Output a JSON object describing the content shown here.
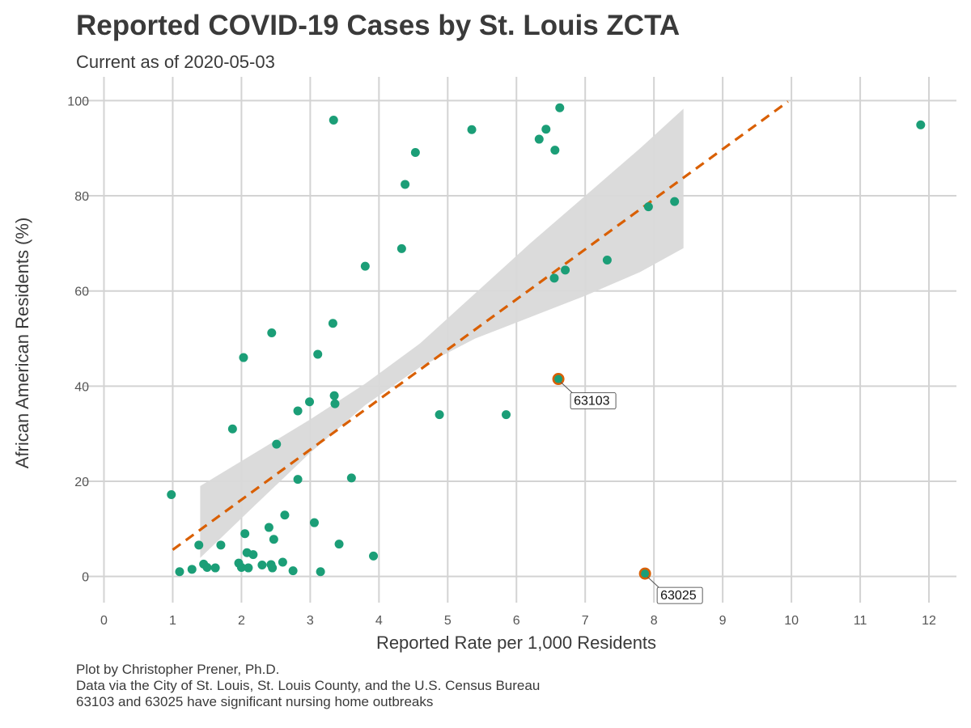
{
  "title": "Reported COVID-19 Cases by St. Louis ZCTA",
  "subtitle": "Current as of 2020-05-03",
  "caption": [
    "Plot by Christopher Prener, Ph.D.",
    "Data via the City of St. Louis, St. Louis County, and the U.S. Census Bureau",
    "63103 and 63025 have significant nursing home outbreaks"
  ],
  "colors": {
    "point": "#1b9e77",
    "trend": "#d95f02",
    "ribbon": "#d9d9d9",
    "grid": "#d3d3d3",
    "highlight": "#d95f02"
  },
  "chart_data": {
    "type": "scatter",
    "title": "Reported COVID-19 Cases by St. Louis ZCTA",
    "xlabel": "Reported Rate per 1,000 Residents",
    "ylabel": "African American Residents (%)",
    "xlim": [
      -0.3,
      12.4
    ],
    "ylim": [
      -5.5,
      105
    ],
    "xticks": [
      0,
      1,
      2,
      3,
      4,
      5,
      6,
      7,
      8,
      9,
      10,
      11,
      12
    ],
    "yticks": [
      0,
      20,
      40,
      60,
      80,
      100
    ],
    "grid": true,
    "legend": "none",
    "points": [
      {
        "x": 0.98,
        "y": 17.2
      },
      {
        "x": 1.1,
        "y": 1.0
      },
      {
        "x": 1.28,
        "y": 1.5
      },
      {
        "x": 1.38,
        "y": 6.6
      },
      {
        "x": 1.45,
        "y": 2.6
      },
      {
        "x": 1.5,
        "y": 1.9
      },
      {
        "x": 1.62,
        "y": 1.8
      },
      {
        "x": 1.7,
        "y": 6.6
      },
      {
        "x": 1.87,
        "y": 31.0
      },
      {
        "x": 1.96,
        "y": 2.8
      },
      {
        "x": 2.0,
        "y": 1.9
      },
      {
        "x": 2.03,
        "y": 46.0
      },
      {
        "x": 2.05,
        "y": 9.0
      },
      {
        "x": 2.08,
        "y": 5.0
      },
      {
        "x": 2.1,
        "y": 1.8
      },
      {
        "x": 2.17,
        "y": 4.6
      },
      {
        "x": 2.3,
        "y": 2.4
      },
      {
        "x": 2.4,
        "y": 10.3
      },
      {
        "x": 2.43,
        "y": 2.5
      },
      {
        "x": 2.44,
        "y": 51.2
      },
      {
        "x": 2.45,
        "y": 1.8
      },
      {
        "x": 2.47,
        "y": 7.8
      },
      {
        "x": 2.51,
        "y": 27.8
      },
      {
        "x": 2.6,
        "y": 3.0
      },
      {
        "x": 2.63,
        "y": 12.9
      },
      {
        "x": 2.75,
        "y": 1.2
      },
      {
        "x": 2.82,
        "y": 34.8
      },
      {
        "x": 2.82,
        "y": 20.4
      },
      {
        "x": 2.99,
        "y": 36.7
      },
      {
        "x": 3.06,
        "y": 11.3
      },
      {
        "x": 3.11,
        "y": 46.7
      },
      {
        "x": 3.15,
        "y": 1.0
      },
      {
        "x": 3.33,
        "y": 53.2
      },
      {
        "x": 3.34,
        "y": 95.9
      },
      {
        "x": 3.35,
        "y": 38.0
      },
      {
        "x": 3.36,
        "y": 36.3
      },
      {
        "x": 3.42,
        "y": 6.8
      },
      {
        "x": 3.6,
        "y": 20.7
      },
      {
        "x": 3.8,
        "y": 65.2
      },
      {
        "x": 3.92,
        "y": 4.3
      },
      {
        "x": 4.33,
        "y": 68.9
      },
      {
        "x": 4.38,
        "y": 82.4
      },
      {
        "x": 4.53,
        "y": 89.1
      },
      {
        "x": 4.88,
        "y": 34.0
      },
      {
        "x": 5.35,
        "y": 93.9
      },
      {
        "x": 5.85,
        "y": 34.0
      },
      {
        "x": 6.33,
        "y": 91.9
      },
      {
        "x": 6.43,
        "y": 94.0
      },
      {
        "x": 6.55,
        "y": 62.7
      },
      {
        "x": 6.56,
        "y": 89.6
      },
      {
        "x": 6.63,
        "y": 98.5
      },
      {
        "x": 6.71,
        "y": 64.4
      },
      {
        "x": 7.32,
        "y": 66.5
      },
      {
        "x": 7.92,
        "y": 77.7
      },
      {
        "x": 8.3,
        "y": 78.8
      },
      {
        "x": 11.88,
        "y": 94.9
      }
    ],
    "highlighted": [
      {
        "label": "63103",
        "x": 6.61,
        "y": 41.5
      },
      {
        "label": "63025",
        "x": 7.87,
        "y": 0.6
      }
    ],
    "trend_line": {
      "x": [
        1.0,
        9.95
      ],
      "y": [
        5.6,
        99.8
      ]
    },
    "confidence_band": {
      "x": [
        1.4,
        2.2,
        3.0,
        3.8,
        4.6,
        5.4,
        6.2,
        7.0,
        7.8,
        8.43
      ],
      "lower": [
        3.9,
        15.0,
        26.0,
        36.0,
        44.0,
        50.0,
        54.5,
        59.0,
        64.0,
        69.0
      ],
      "upper": [
        19.0,
        26.0,
        33.0,
        40.5,
        49.0,
        59.5,
        70.0,
        80.0,
        90.0,
        98.3
      ]
    }
  }
}
